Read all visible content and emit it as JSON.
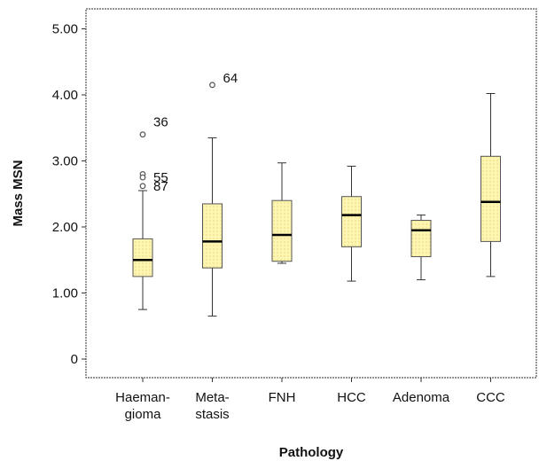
{
  "chart_data": {
    "type": "boxplot",
    "xlabel": "Pathology",
    "ylabel": "Mass MSN",
    "ylim": [
      0,
      5.3
    ],
    "yticks": [
      "0",
      "1.00",
      "2.00",
      "3.00",
      "4.00",
      "5.00"
    ],
    "ytick_values": [
      0,
      1,
      2,
      3,
      4,
      5
    ],
    "grid": false,
    "box_color": "#fdf5b0",
    "box_stroke": "#555555",
    "categories": [
      {
        "label": [
          "Haeman-",
          "gioma"
        ],
        "whisker_low": 0.75,
        "q1": 1.25,
        "median": 1.5,
        "q3": 1.82,
        "whisker_high": 2.55,
        "outliers": [
          {
            "value": 3.4,
            "label": "36"
          },
          {
            "value": 2.8,
            "label": ""
          },
          {
            "value": 2.75,
            "label": "55"
          },
          {
            "value": 2.62,
            "label": "87"
          }
        ]
      },
      {
        "label": [
          "Meta-",
          "stasis"
        ],
        "whisker_low": 0.65,
        "q1": 1.38,
        "median": 1.78,
        "q3": 2.35,
        "whisker_high": 3.35,
        "outliers": [
          {
            "value": 4.15,
            "label": "64"
          }
        ]
      },
      {
        "label": [
          "FNH"
        ],
        "whisker_low": 1.45,
        "q1": 1.48,
        "median": 1.88,
        "q3": 2.4,
        "whisker_high": 2.97,
        "outliers": []
      },
      {
        "label": [
          "HCC"
        ],
        "whisker_low": 1.18,
        "q1": 1.7,
        "median": 2.18,
        "q3": 2.46,
        "whisker_high": 2.92,
        "outliers": []
      },
      {
        "label": [
          "Adenoma"
        ],
        "whisker_low": 1.2,
        "q1": 1.55,
        "median": 1.95,
        "q3": 2.1,
        "whisker_high": 2.18,
        "outliers": []
      },
      {
        "label": [
          "CCC"
        ],
        "whisker_low": 1.25,
        "q1": 1.78,
        "median": 2.38,
        "q3": 3.07,
        "whisker_high": 4.02,
        "outliers": []
      }
    ]
  }
}
